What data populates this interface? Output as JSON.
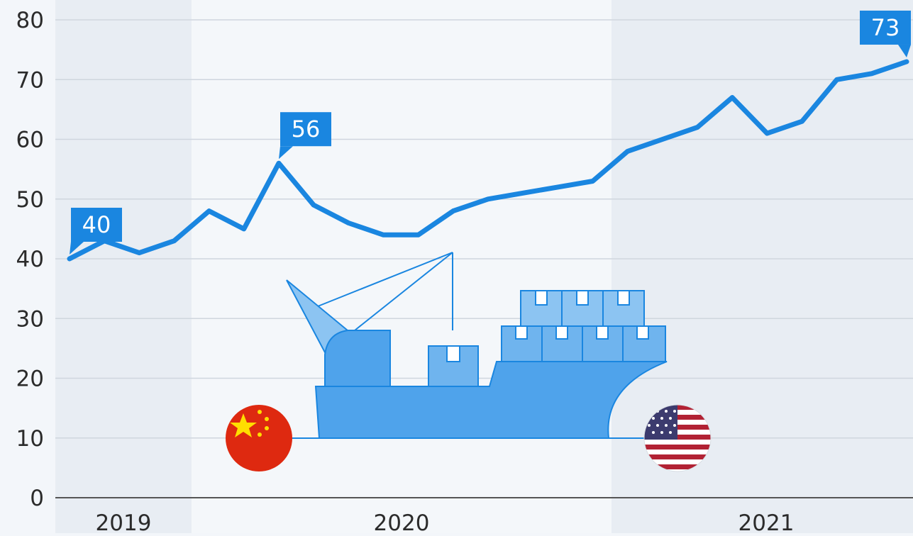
{
  "chart_data": {
    "type": "line",
    "y_ticks": [
      "0",
      "10",
      "20",
      "30",
      "40",
      "50",
      "60",
      "70",
      "80"
    ],
    "ylim": [
      0,
      80
    ],
    "grid": true,
    "x_period_labels": [
      "2019",
      "2020",
      "2021"
    ],
    "series": [
      {
        "values": [
          40,
          43,
          41,
          43,
          48,
          45,
          56,
          49,
          46,
          44,
          44,
          48,
          50,
          51,
          52,
          53,
          58,
          60,
          62,
          67,
          61,
          63,
          70,
          71,
          73
        ]
      }
    ],
    "callouts": [
      {
        "index": 0,
        "label": "40"
      },
      {
        "index": 6,
        "label": "56"
      },
      {
        "index": 24,
        "label": "73"
      }
    ],
    "colors": {
      "line": "#1a86e0",
      "grid": "#cfd6de",
      "axis_text": "#2b2b2b",
      "band_dark": "#e8edf3",
      "band_light": "#f4f7fa",
      "ship": "#4fa3eb",
      "ship_light": "#8cc4f2"
    },
    "decoration": {
      "illustration": "container-ship",
      "origin_flag": "china-flag",
      "destination_flag": "usa-flag"
    }
  }
}
